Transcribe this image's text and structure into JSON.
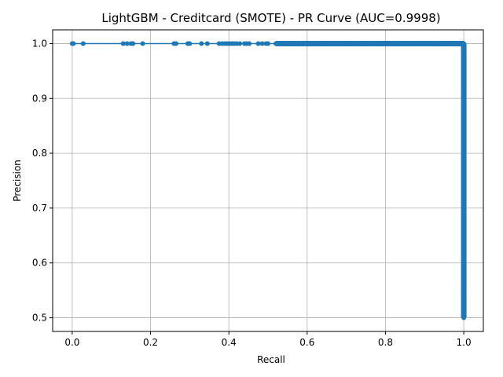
{
  "chart_data": {
    "type": "line",
    "title": "LightGBM - Creditcard (SMOTE) - PR Curve (AUC=0.9998)",
    "xlabel": "Recall",
    "ylabel": "Precision",
    "xlim": [
      -0.05,
      1.05
    ],
    "ylim": [
      0.475,
      1.025
    ],
    "xticks": [
      0.0,
      0.2,
      0.4,
      0.6,
      0.8,
      1.0
    ],
    "xtick_labels": [
      "0.0",
      "0.2",
      "0.4",
      "0.6",
      "0.8",
      "1.0"
    ],
    "yticks": [
      0.5,
      0.6,
      0.7,
      0.8,
      0.9,
      1.0
    ],
    "ytick_labels": [
      "0.5",
      "0.6",
      "0.7",
      "0.8",
      "0.9",
      "1.0"
    ],
    "grid": true,
    "legend": false,
    "color": "#1f77b4",
    "series": [
      {
        "x": [
          0.0,
          0.003,
          0.028,
          0.13,
          0.14,
          0.15,
          0.155,
          0.18,
          0.26,
          0.265,
          0.295,
          0.3,
          0.33,
          0.345,
          0.375,
          0.383,
          0.39,
          0.396,
          0.402,
          0.408,
          0.414,
          0.42,
          0.428,
          0.44,
          0.445,
          0.452,
          0.475,
          0.485,
          0.495,
          0.5,
          0.52,
          0.56,
          0.6,
          0.65,
          0.7,
          0.75,
          0.8,
          0.85,
          0.9,
          0.95,
          1.0,
          1.0,
          1.0,
          1.0,
          1.0,
          1.0,
          1.0
        ],
        "y": [
          1.0,
          1.0,
          1.0,
          1.0,
          1.0,
          1.0,
          1.0,
          1.0,
          1.0,
          1.0,
          1.0,
          1.0,
          1.0,
          1.0,
          1.0,
          1.0,
          1.0,
          1.0,
          1.0,
          1.0,
          1.0,
          1.0,
          1.0,
          1.0,
          1.0,
          1.0,
          1.0,
          1.0,
          1.0,
          1.0,
          1.0,
          1.0,
          1.0,
          1.0,
          1.0,
          1.0,
          1.0,
          1.0,
          1.0,
          1.0,
          1.0,
          0.9,
          0.8,
          0.7,
          0.6,
          0.55,
          0.5
        ]
      }
    ]
  }
}
